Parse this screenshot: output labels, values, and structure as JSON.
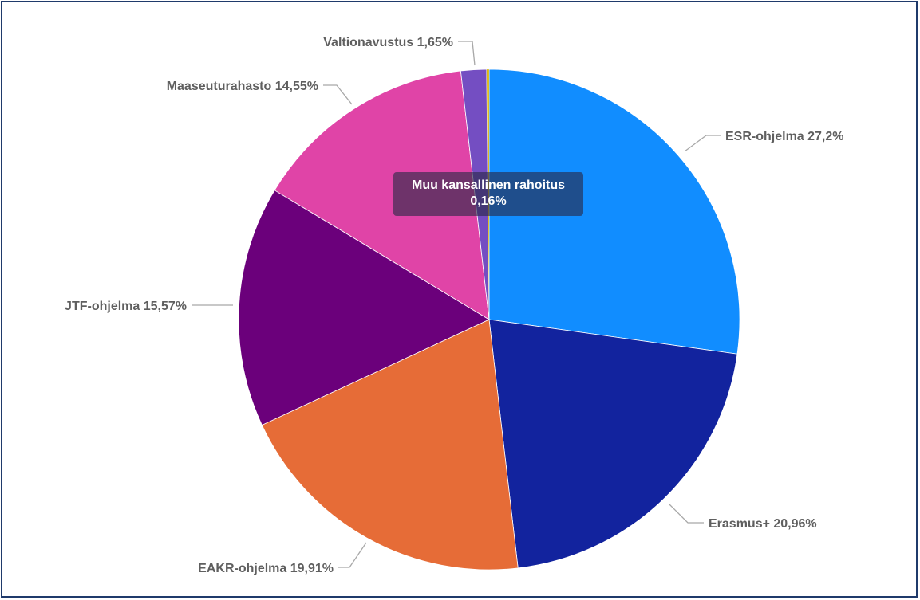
{
  "chart_data": {
    "type": "pie",
    "slices": [
      {
        "name": "ESR-ohjelma",
        "value": 27.2,
        "label": "ESR-ohjelma 27,2%",
        "color": "#118dff"
      },
      {
        "name": "Erasmus+",
        "value": 20.96,
        "label": "Erasmus+ 20,96%",
        "color": "#12239e"
      },
      {
        "name": "EAKR-ohjelma",
        "value": 19.91,
        "label": "EAKR-ohjelma 19,91%",
        "color": "#e66c37"
      },
      {
        "name": "JTF-ohjelma",
        "value": 15.57,
        "label": "JTF-ohjelma 15,57%",
        "color": "#6b007b"
      },
      {
        "name": "Maaseuturahasto",
        "value": 14.55,
        "label": "Maaseuturahasto 14,55%",
        "color": "#e044a7"
      },
      {
        "name": "Valtionavustus",
        "value": 1.65,
        "label": "Valtionavustus 1,65%",
        "color": "#744ec2"
      },
      {
        "name": "Muu kansallinen rahoitus",
        "value": 0.16,
        "label": "",
        "color": "#d9b300"
      }
    ],
    "start_angle_deg": 0,
    "direction": "clockwise",
    "tooltip": {
      "title": "Muu kansallinen rahoitus",
      "value": "0,16%"
    }
  }
}
